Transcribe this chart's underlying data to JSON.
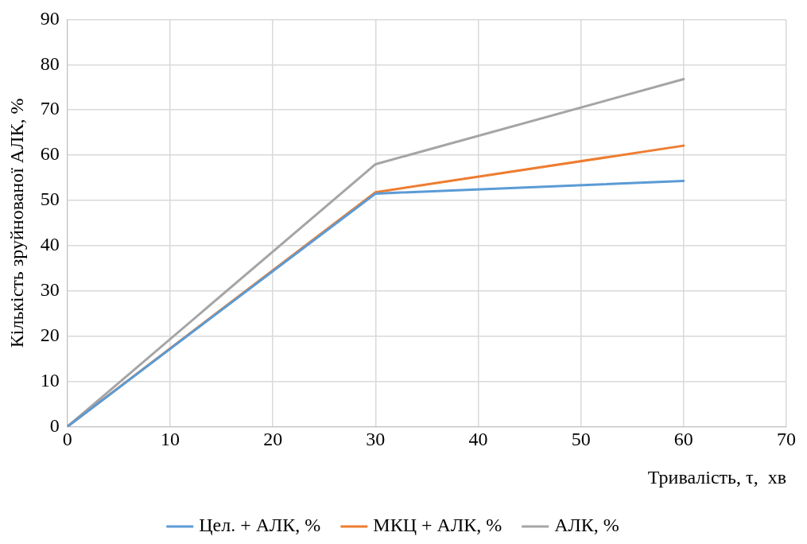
{
  "chart_data": {
    "type": "line",
    "xlabel": "Тривалість, τ,  хв",
    "ylabel": "Кількість зруйнованої АЛК, %",
    "x": [
      0,
      30,
      60
    ],
    "series": [
      {
        "name": "Цел. + АЛК, %",
        "color": "#5b9bd5",
        "values": [
          0,
          51.5,
          54.3
        ]
      },
      {
        "name": "МКЦ + АЛК, %",
        "color": "#ed7d31",
        "values": [
          0,
          51.8,
          62.1
        ]
      },
      {
        "name": "АЛК, %",
        "color": "#a5a5a5",
        "values": [
          0,
          58,
          76.8
        ]
      }
    ],
    "xlim": [
      0,
      70
    ],
    "xticks": [
      0,
      10,
      20,
      30,
      40,
      50,
      60,
      70
    ],
    "ylim": [
      0,
      90
    ],
    "yticks": [
      0,
      10,
      20,
      30,
      40,
      50,
      60,
      70,
      80,
      90
    ],
    "grid": true,
    "legend": "bottom",
    "marker": "none",
    "line_style": "solid"
  }
}
